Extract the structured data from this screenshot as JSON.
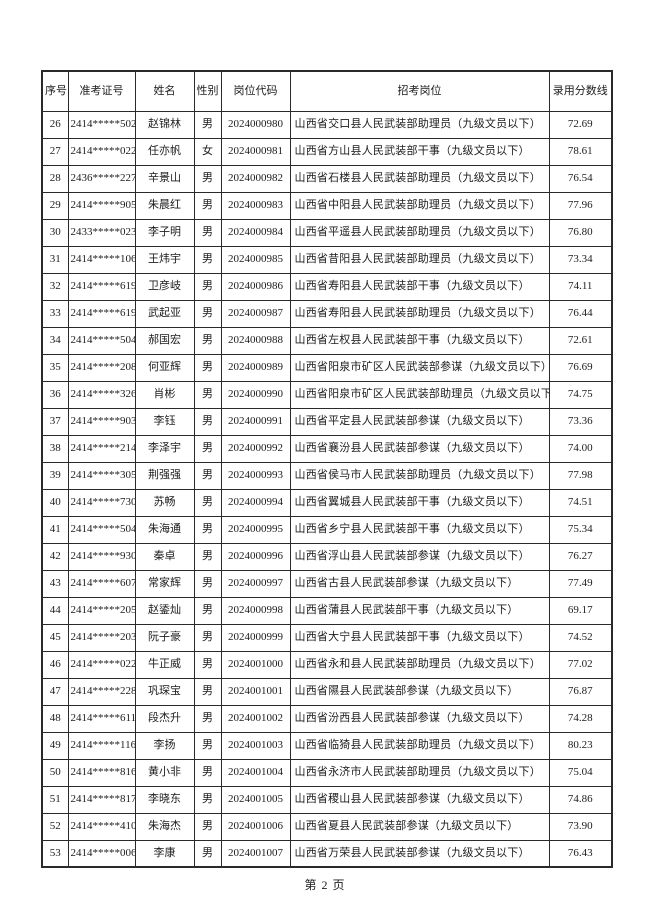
{
  "page": {
    "footer": "第 2 页",
    "background_color": "#ffffff",
    "text_color": "#1c1c1c",
    "border_color": "#2a2a2a"
  },
  "table": {
    "headers": [
      "序号",
      "准考证号",
      "姓名",
      "性别",
      "岗位代码",
      "招考岗位",
      "录用分数线"
    ],
    "rows": [
      [
        "26",
        "2414*****502",
        "赵锦林",
        "男",
        "2024000980",
        "山西省交口县人民武装部助理员（九级文员以下）",
        "72.69"
      ],
      [
        "27",
        "2414*****022",
        "任亦帆",
        "女",
        "2024000981",
        "山西省方山县人民武装部干事（九级文员以下）",
        "78.61"
      ],
      [
        "28",
        "2436*****227",
        "辛景山",
        "男",
        "2024000982",
        "山西省石楼县人民武装部助理员（九级文员以下）",
        "76.54"
      ],
      [
        "29",
        "2414*****905",
        "朱晨红",
        "男",
        "2024000983",
        "山西省中阳县人民武装部助理员（九级文员以下）",
        "77.96"
      ],
      [
        "30",
        "2433*****023",
        "李子明",
        "男",
        "2024000984",
        "山西省平遥县人民武装部助理员（九级文员以下）",
        "76.80"
      ],
      [
        "31",
        "2414*****106",
        "王炜宇",
        "男",
        "2024000985",
        "山西省昔阳县人民武装部助理员（九级文员以下）",
        "73.34"
      ],
      [
        "32",
        "2414*****619",
        "卫彦岐",
        "男",
        "2024000986",
        "山西省寿阳县人民武装部干事（九级文员以下）",
        "74.11"
      ],
      [
        "33",
        "2414*****619",
        "武起亚",
        "男",
        "2024000987",
        "山西省寿阳县人民武装部助理员（九级文员以下）",
        "76.44"
      ],
      [
        "34",
        "2414*****504",
        "郝国宏",
        "男",
        "2024000988",
        "山西省左权县人民武装部干事（九级文员以下）",
        "72.61"
      ],
      [
        "35",
        "2414*****208",
        "何亚辉",
        "男",
        "2024000989",
        "山西省阳泉市矿区人民武装部参谋（九级文员以下）",
        "76.69"
      ],
      [
        "36",
        "2414*****326",
        "肖彬",
        "男",
        "2024000990",
        "山西省阳泉市矿区人民武装部助理员（九级文员以下）",
        "74.75"
      ],
      [
        "37",
        "2414*****903",
        "李钰",
        "男",
        "2024000991",
        "山西省平定县人民武装部参谋（九级文员以下）",
        "73.36"
      ],
      [
        "38",
        "2414*****214",
        "李泽宇",
        "男",
        "2024000992",
        "山西省襄汾县人民武装部参谋（九级文员以下）",
        "74.00"
      ],
      [
        "39",
        "2414*****305",
        "荆强强",
        "男",
        "2024000993",
        "山西省侯马市人民武装部助理员（九级文员以下）",
        "77.98"
      ],
      [
        "40",
        "2414*****730",
        "苏畅",
        "男",
        "2024000994",
        "山西省翼城县人民武装部干事（九级文员以下）",
        "74.51"
      ],
      [
        "41",
        "2414*****504",
        "朱海通",
        "男",
        "2024000995",
        "山西省乡宁县人民武装部干事（九级文员以下）",
        "75.34"
      ],
      [
        "42",
        "2414*****930",
        "秦卓",
        "男",
        "2024000996",
        "山西省浮山县人民武装部参谋（九级文员以下）",
        "76.27"
      ],
      [
        "43",
        "2414*****607",
        "常家辉",
        "男",
        "2024000997",
        "山西省古县人民武装部参谋（九级文员以下）",
        "77.49"
      ],
      [
        "44",
        "2414*****205",
        "赵鋈灿",
        "男",
        "2024000998",
        "山西省蒲县人民武装部干事（九级文员以下）",
        "69.17"
      ],
      [
        "45",
        "2414*****203",
        "阮子豪",
        "男",
        "2024000999",
        "山西省大宁县人民武装部干事（九级文员以下）",
        "74.52"
      ],
      [
        "46",
        "2414*****022",
        "牛正威",
        "男",
        "2024001000",
        "山西省永和县人民武装部助理员（九级文员以下）",
        "77.02"
      ],
      [
        "47",
        "2414*****228",
        "巩琛宝",
        "男",
        "2024001001",
        "山西省隰县人民武装部参谋（九级文员以下）",
        "76.87"
      ],
      [
        "48",
        "2414*****611",
        "段杰升",
        "男",
        "2024001002",
        "山西省汾西县人民武装部参谋（九级文员以下）",
        "74.28"
      ],
      [
        "49",
        "2414*****116",
        "李扬",
        "男",
        "2024001003",
        "山西省临猗县人民武装部助理员（九级文员以下）",
        "80.23"
      ],
      [
        "50",
        "2414*****816",
        "黄小非",
        "男",
        "2024001004",
        "山西省永济市人民武装部助理员（九级文员以下）",
        "75.04"
      ],
      [
        "51",
        "2414*****817",
        "李晓东",
        "男",
        "2024001005",
        "山西省稷山县人民武装部参谋（九级文员以下）",
        "74.86"
      ],
      [
        "52",
        "2414*****410",
        "朱海杰",
        "男",
        "2024001006",
        "山西省夏县人民武装部参谋（九级文员以下）",
        "73.90"
      ],
      [
        "53",
        "2414*****006",
        "李康",
        "男",
        "2024001007",
        "山西省万荣县人民武装部参谋（九级文员以下）",
        "76.43"
      ]
    ]
  }
}
